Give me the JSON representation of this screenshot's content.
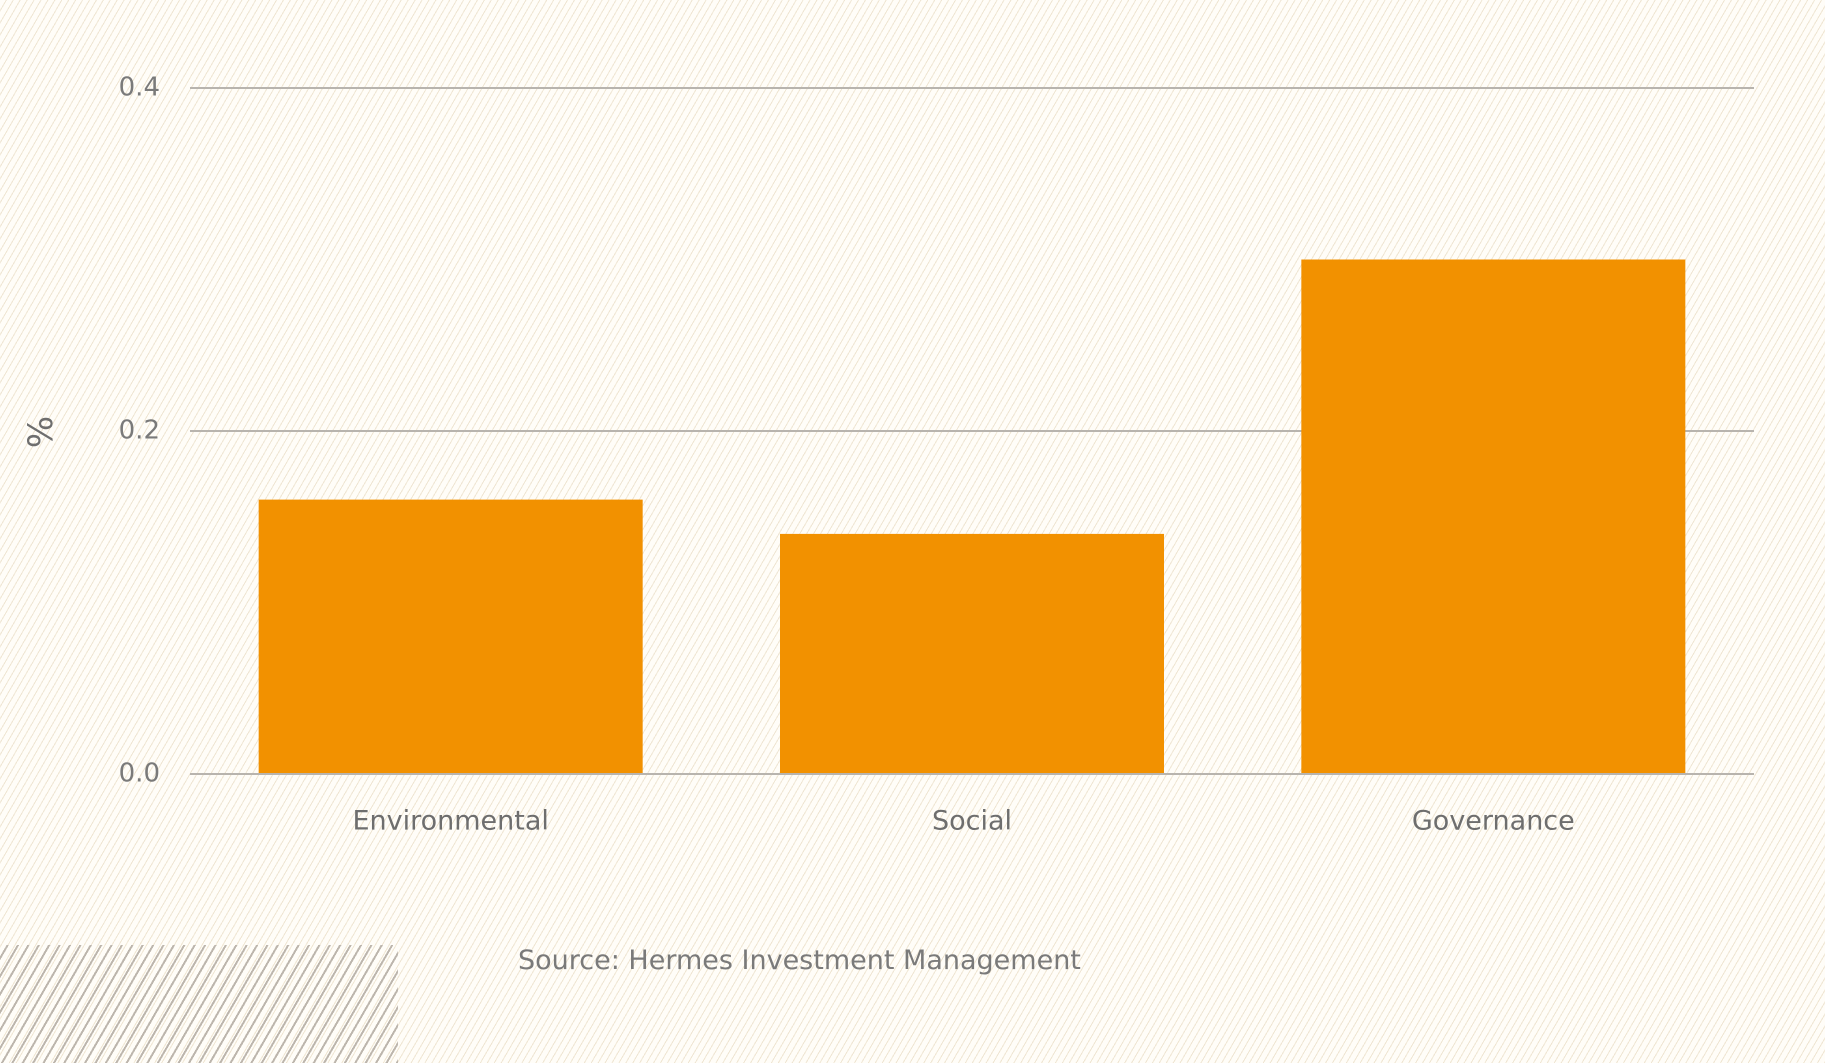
{
  "chart_data": {
    "type": "bar",
    "title": "",
    "xlabel": "",
    "ylabel": "%",
    "categories": [
      "Environmental",
      "Social",
      "Governance"
    ],
    "values": [
      0.16,
      0.14,
      0.3
    ],
    "ylim": [
      0,
      0.4
    ],
    "yticks": [
      0.0,
      0.2,
      0.4
    ],
    "ytick_labels": [
      "0.0",
      "0.2",
      "0.4"
    ],
    "grid": true,
    "bar_color": "#f29100",
    "gridline_color": "#b8b4ae"
  },
  "source": "Source: Hermes Investment Management"
}
